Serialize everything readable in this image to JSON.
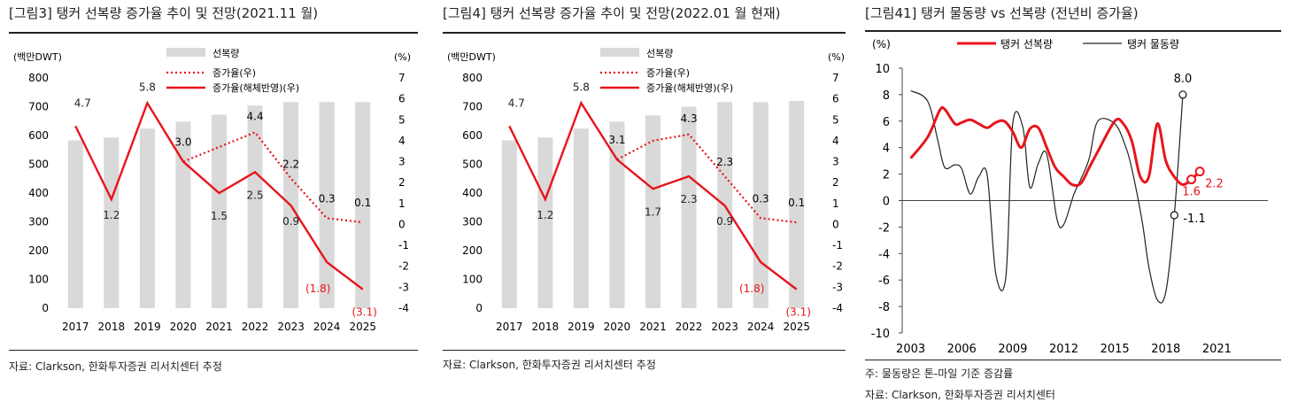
{
  "charts": [
    {
      "title": "[그림3]  탱커 선복량 증가율 추이 및 전망(2021.11 월)",
      "source": "자료: Clarkson, 한화투자증권 리서치센터 추정",
      "chart_data": {
        "type": "bar+line",
        "categories": [
          "2017",
          "2018",
          "2019",
          "2020",
          "2021",
          "2022",
          "2023",
          "2024",
          "2025"
        ],
        "ylabel_left": "(백만DWT)",
        "ylabel_right": "(%)",
        "ylim_left": [
          0,
          800
        ],
        "ylim_right": [
          -4,
          7
        ],
        "left_ticks": [
          "0",
          "100",
          "200",
          "300",
          "400",
          "500",
          "600",
          "700",
          "800"
        ],
        "right_ticks": [
          "-4",
          "-3",
          "-2",
          "-1",
          "0",
          "1",
          "2",
          "3",
          "4",
          "5",
          "6",
          "7"
        ],
        "series": [
          {
            "name": "선복량",
            "kind": "bar",
            "axis": "left",
            "color": "#d9d9d9",
            "values": [
              583,
              593,
              624,
              648,
              672,
              704,
              716,
              716,
              716
            ]
          },
          {
            "name": "증가율(우)",
            "kind": "line-dotted",
            "axis": "right",
            "color": "#e8141b",
            "values": [
              null,
              null,
              null,
              3.0,
              null,
              4.4,
              2.2,
              0.3,
              0.1
            ],
            "labels": [
              "",
              "",
              "",
              "3.0",
              "",
              "4.4",
              "2.2",
              "0.3",
              "0.1"
            ]
          },
          {
            "name": "증가율(해체반영)(우)",
            "kind": "line",
            "axis": "right",
            "color": "#e8141b",
            "values": [
              4.7,
              1.2,
              5.8,
              3.0,
              1.5,
              2.5,
              0.9,
              -1.8,
              -3.1
            ],
            "labels": [
              "4.7",
              "1.2",
              "5.8",
              "",
              "1.5",
              "2.5",
              "0.9",
              "(1.8)",
              "(3.1)"
            ]
          }
        ]
      }
    },
    {
      "title": "[그림4]  탱커 선복량 증가율 추이 및 전망(2022.01 월 현재)",
      "source": "자료: Clarkson, 한화투자증권 리서치센터 추정",
      "chart_data": {
        "type": "bar+line",
        "categories": [
          "2017",
          "2018",
          "2019",
          "2020",
          "2021",
          "2022",
          "2023",
          "2024",
          "2025"
        ],
        "ylabel_left": "(백만DWT)",
        "ylabel_right": "(%)",
        "ylim_left": [
          0,
          800
        ],
        "ylim_right": [
          -4,
          7
        ],
        "left_ticks": [
          "0",
          "100",
          "200",
          "300",
          "400",
          "500",
          "600",
          "700",
          "800"
        ],
        "right_ticks": [
          "-4",
          "-3",
          "-2",
          "-1",
          "0",
          "1",
          "2",
          "3",
          "4",
          "5",
          "6",
          "7"
        ],
        "series": [
          {
            "name": "선복량",
            "kind": "bar",
            "axis": "left",
            "color": "#d9d9d9",
            "values": [
              583,
              593,
              624,
              648,
              670,
              700,
              716,
              716,
              720
            ]
          },
          {
            "name": "증가율(우)",
            "kind": "line-dotted",
            "axis": "right",
            "color": "#e8141b",
            "values": [
              null,
              null,
              null,
              3.1,
              4.0,
              4.3,
              2.3,
              0.3,
              0.1
            ],
            "labels": [
              "",
              "",
              "",
              "3.1",
              "",
              "4.3",
              "2.3",
              "0.3",
              "0.1"
            ]
          },
          {
            "name": "증가율(해체반영)(우)",
            "kind": "line",
            "axis": "right",
            "color": "#e8141b",
            "values": [
              4.7,
              1.2,
              5.8,
              3.1,
              1.7,
              2.3,
              0.9,
              -1.8,
              -3.1
            ],
            "labels": [
              "4.7",
              "1.2",
              "5.8",
              "",
              "1.7",
              "2.3",
              "0.9",
              "(1.8)",
              "(3.1)"
            ]
          }
        ]
      }
    },
    {
      "title": "[그림41]  탱커 물동량 vs 선복량 (전년비 증가율)",
      "note": "주: 물동량은 톤-마일 기준 증감률",
      "source": "자료: Clarkson, 한화투자증권 리서치센터",
      "chart_data": {
        "type": "line",
        "ylabel": "(%)",
        "ylim": [
          -10,
          10
        ],
        "xlim": [
          2002.5,
          2024
        ],
        "y_ticks": [
          "-10",
          "-8",
          "-6",
          "-4",
          "-2",
          "0",
          "2",
          "4",
          "6",
          "8",
          "10"
        ],
        "x_tick_labels": [
          "2003",
          "2006",
          "2009",
          "2012",
          "2015",
          "2018",
          "2021"
        ],
        "x_tick_values": [
          2003,
          2006,
          2009,
          2012,
          2015,
          2018,
          2021
        ],
        "series": [
          {
            "name": "탱커 선복량",
            "color": "#e8141b",
            "x": [
              2003,
              2004,
              2004.7,
              2005,
              2005.6,
              2006,
              2006.5,
              2007,
              2007.5,
              2008,
              2008.5,
              2009,
              2009.5,
              2010,
              2010.5,
              2011,
              2011.5,
              2012,
              2012.5,
              2013,
              2013.5,
              2014,
              2015,
              2015.5,
              2016,
              2016.5,
              2017,
              2017.5,
              2018,
              2018.5,
              2019,
              2019.5,
              2020,
              2020.5,
              2021,
              2021.5
            ],
            "y": [
              3.2,
              4.8,
              6.8,
              6.9,
              5.8,
              5.9,
              6.1,
              5.8,
              5.5,
              5.9,
              6.0,
              5.2,
              4.0,
              5.4,
              5.5,
              4.0,
              2.5,
              1.8,
              1.2,
              1.3,
              2.5,
              3.7,
              6.0,
              5.8,
              4.5,
              1.8,
              1.8,
              5.8,
              3.0,
              1.8,
              1.2,
              1.6,
              2.2,
              null,
              null,
              null
            ],
            "end_labels": [
              "1.6",
              "2.2"
            ]
          },
          {
            "name": "탱커 물동량",
            "color": "#222222",
            "x": [
              2003,
              2004,
              2004.6,
              2005,
              2005.6,
              2006,
              2006.5,
              2007,
              2007.5,
              2008,
              2008.6,
              2009,
              2009.6,
              2010,
              2010.5,
              2011,
              2011.6,
              2012,
              2012.6,
              2013,
              2013.5,
              2014,
              2015,
              2015.6,
              2016,
              2016.6,
              2017,
              2017.5,
              2018,
              2018.5,
              2019,
              2019.5,
              2020,
              2020.6,
              2021,
              2021.5
            ],
            "y": [
              8.3,
              7.5,
              4.5,
              2.5,
              2.7,
              2.4,
              0.5,
              1.8,
              1.9,
              -5.5,
              -5.7,
              5.8,
              5.5,
              1.0,
              2.8,
              3.5,
              -1.4,
              -1.8,
              0.5,
              1.6,
              3.2,
              6.0,
              5.8,
              4.2,
              2.4,
              -1.5,
              -5.0,
              -7.5,
              -6.9,
              -1.1,
              8.0,
              null,
              null,
              null,
              null,
              null
            ],
            "end_labels": [
              "-1.1",
              "8.0"
            ]
          }
        ]
      }
    }
  ]
}
